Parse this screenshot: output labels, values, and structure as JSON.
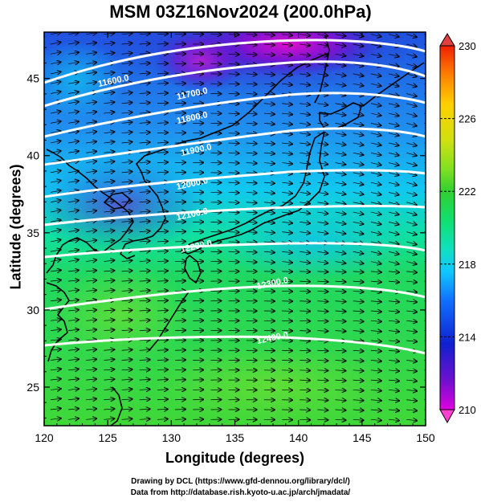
{
  "title": "MSM 03Z16Nov2024 (200.0hPa)",
  "xlabel": "Longitude (degrees)",
  "ylabel": "Latitude  (degrees)",
  "x_ticks": [
    "120",
    "125",
    "130",
    "135",
    "140",
    "145",
    "150"
  ],
  "y_ticks": [
    "25",
    "30",
    "35",
    "40",
    "45"
  ],
  "colorbar": {
    "min": 210,
    "max": 230,
    "tick_labels": [
      "230",
      "226",
      "222",
      "218",
      "214",
      "210"
    ],
    "colors": [
      "#e000e0",
      "#7010d0",
      "#1020d0",
      "#1070ff",
      "#10c8ff",
      "#10e0c0",
      "#10e070",
      "#30d030",
      "#80e020",
      "#d0e010",
      "#ffd000",
      "#ff8000",
      "#f02000"
    ]
  },
  "contours": [
    {
      "label": "11600.0"
    },
    {
      "label": "11700.0"
    },
    {
      "label": "11800.0"
    },
    {
      "label": "11900.0"
    },
    {
      "label": "12000.0"
    },
    {
      "label": "12100.0"
    },
    {
      "label": "12200.0"
    },
    {
      "label": "12300.0"
    },
    {
      "label": "12400.0"
    }
  ],
  "credits": [
    "Drawing by DCL (https://www.gfd-dennou.org/library/dcl/)",
    "Data from http://database.rish.kyoto-u.ac.jp/arch/jmadata/"
  ]
}
